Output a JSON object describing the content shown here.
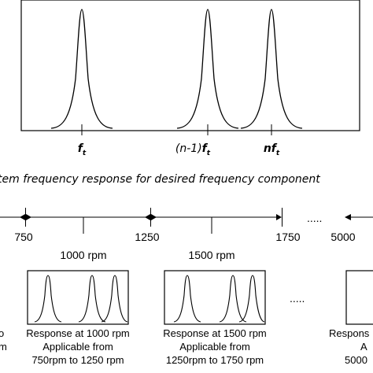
{
  "top_panel": {
    "peak_labels": [
      {
        "base": "f",
        "sub": "t",
        "prefix": ""
      },
      {
        "base": "f",
        "sub": "t",
        "prefix": "(n-1)"
      },
      {
        "base": "f",
        "sub": "t",
        "prefix": "n"
      }
    ],
    "caption": "tem frequency response for desired frequency component"
  },
  "axis": {
    "ticks": [
      "750",
      "1250",
      "1750",
      "5000"
    ],
    "ellipsis": "....."
  },
  "rpm_labels": [
    "1000 rpm",
    "1500 rpm"
  ],
  "boxes_ellipsis": ".....",
  "captions": [
    {
      "lines": [
        "o",
        "m"
      ]
    },
    {
      "lines": [
        "Response at 1000 rpm",
        "Applicable from",
        "750rpm to 1250 rpm"
      ]
    },
    {
      "lines": [
        "Response at 1500 rpm",
        "Applicable from",
        "1250rpm to 1750 rpm"
      ]
    },
    {
      "lines": [
        "Respons",
        "A",
        "5000"
      ]
    }
  ]
}
